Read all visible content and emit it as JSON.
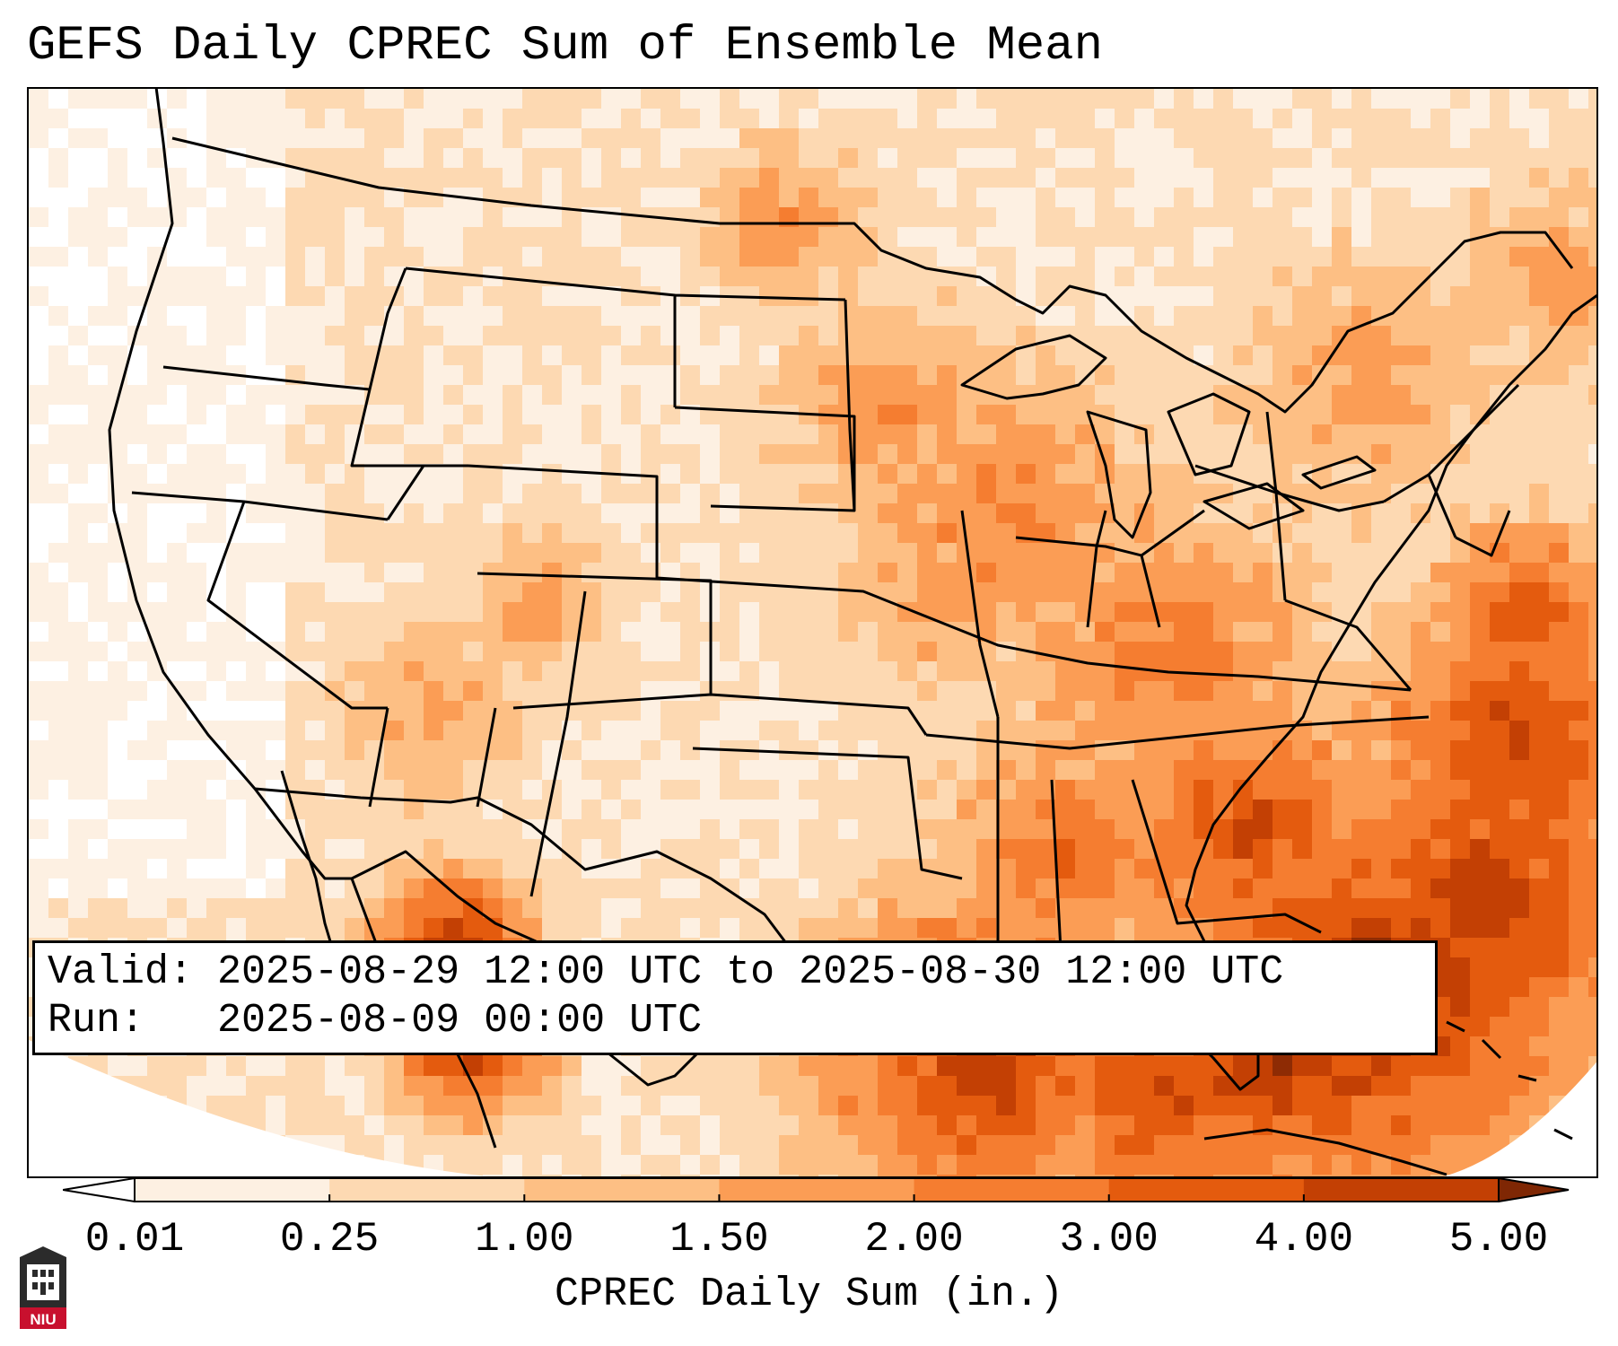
{
  "title": "GEFS Daily CPREC Sum of Ensemble Mean",
  "info": {
    "valid_label": "Valid:",
    "valid_value": "2025-08-29 12:00 UTC to 2025-08-30 12:00 UTC",
    "run_label": "Run:",
    "run_value": "2025-08-09 00:00 UTC"
  },
  "colorbar": {
    "label": "CPREC Daily Sum (in.)",
    "ticks": [
      "0.01",
      "0.25",
      "1.00",
      "1.50",
      "2.00",
      "3.00",
      "4.00",
      "5.00"
    ],
    "colors": [
      "#fdf0e2",
      "#fdd9b2",
      "#fdbf84",
      "#fb9d55",
      "#f57d30",
      "#e45b0e",
      "#c34004",
      "#8e2b04"
    ],
    "under_color": "#ffffff",
    "over_color": "#7f2704",
    "extend": "both"
  },
  "map": {
    "projection": "Lambert conformal, CONUS",
    "variable": "CPREC",
    "regions": [
      {
        "name": "Southeast US / Florida / Gulf of Mexico",
        "level": "3.00-5.00+"
      },
      {
        "name": "Western Atlantic off Carolinas",
        "level": "3.00-5.00+"
      },
      {
        "name": "Sonora / western Mexico",
        "level": "3.00-5.00+"
      },
      {
        "name": "Ohio Valley / Mid-Atlantic",
        "level": "1.50-2.00"
      },
      {
        "name": "Upper Midwest / Iowa / Illinois",
        "level": "1.50-2.00"
      },
      {
        "name": "Colorado / New Mexico / Arizona",
        "level": "1.00-2.00"
      },
      {
        "name": "Pacific Northwest / California",
        "level": "0.01-0.25"
      }
    ]
  },
  "logo": {
    "text": "NIU",
    "accent": "#c8102e"
  }
}
